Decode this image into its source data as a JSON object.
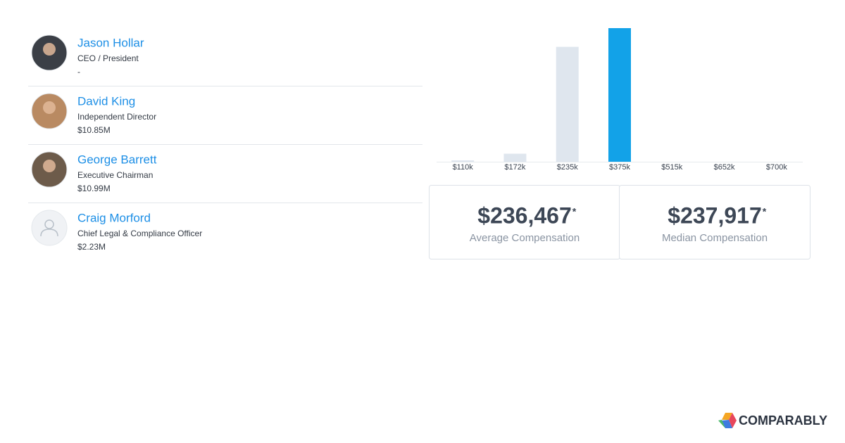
{
  "people": [
    {
      "name": "Jason Hollar",
      "title": "CEO / President",
      "compensation": "-"
    },
    {
      "name": "David King",
      "title": "Independent Director",
      "compensation": "$10.85M"
    },
    {
      "name": "George Barrett",
      "title": "Executive Chairman",
      "compensation": "$10.99M"
    },
    {
      "name": "Craig Morford",
      "title": "Chief Legal & Compliance Officer",
      "compensation": "$2.23M"
    }
  ],
  "chart_data": {
    "type": "bar",
    "categories": [
      "$110k",
      "$172k",
      "$235k",
      "$375k",
      "$515k",
      "$652k",
      "$700k"
    ],
    "values": [
      1,
      6,
      86,
      100,
      0,
      0,
      0
    ],
    "colors": [
      "#dfe6ee",
      "#dfe6ee",
      "#dfe6ee",
      "#12a2e8",
      "#dfe6ee",
      "#dfe6ee",
      "#dfe6ee"
    ],
    "ylim": [
      0,
      100
    ]
  },
  "stats": [
    {
      "value": "$236,467",
      "note": "*",
      "label": "Average Compensation"
    },
    {
      "value": "$237,917",
      "note": "*",
      "label": "Median Compensation"
    }
  ],
  "logo": "COMPARABLY"
}
